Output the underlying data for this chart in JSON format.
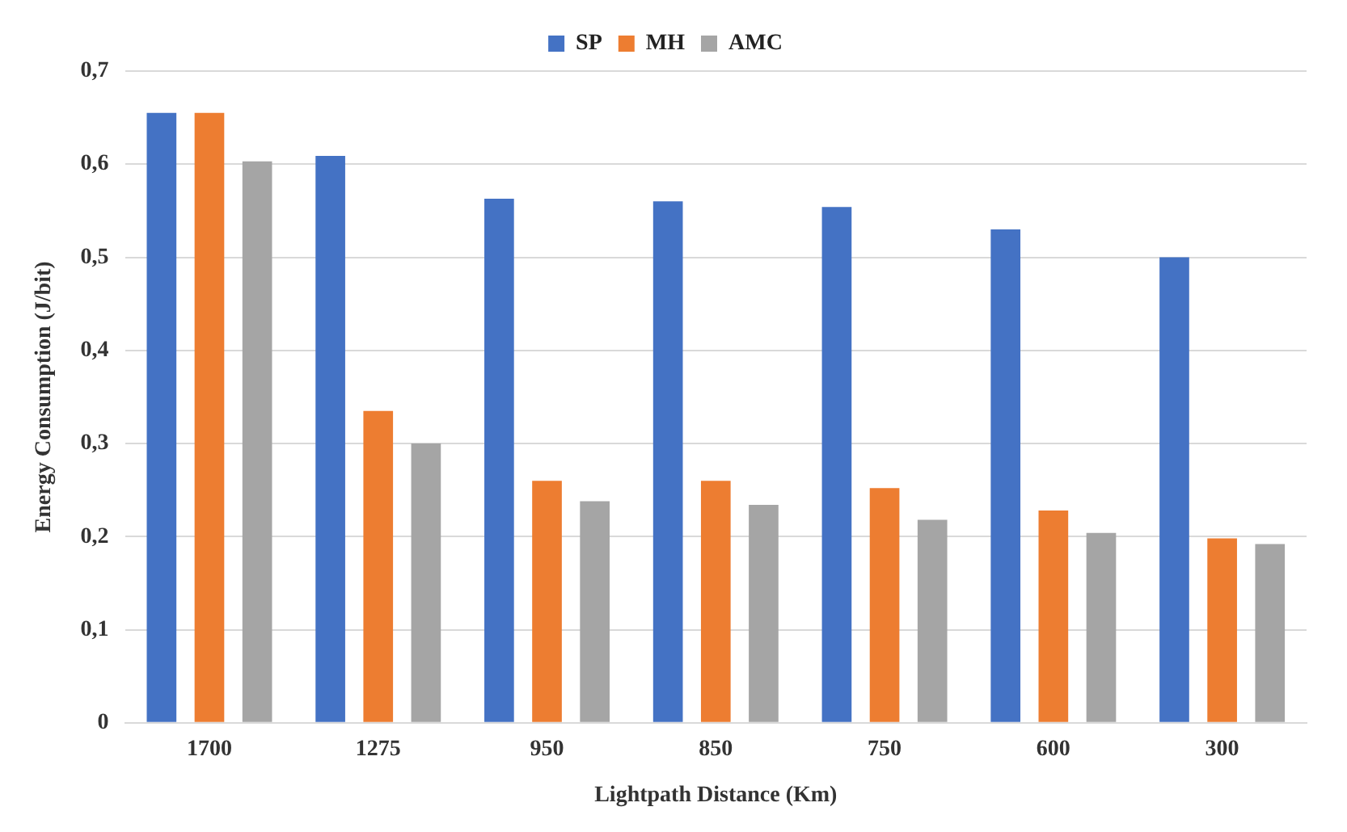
{
  "chart_data": {
    "type": "bar",
    "xlabel": "Lightpath Distance (Km)",
    "ylabel": "Energy Consumption (J/bit)",
    "categories": [
      "1700",
      "1275",
      "950",
      "850",
      "750",
      "600",
      "300"
    ],
    "series": [
      {
        "name": "SP",
        "color": "#4472c4",
        "values": [
          0.655,
          0.609,
          0.563,
          0.56,
          0.554,
          0.53,
          0.5
        ]
      },
      {
        "name": "MH",
        "color": "#ed7d31",
        "values": [
          0.655,
          0.335,
          0.26,
          0.26,
          0.252,
          0.228,
          0.198
        ]
      },
      {
        "name": "AMC",
        "color": "#a5a5a5",
        "values": [
          0.603,
          0.3,
          0.238,
          0.234,
          0.218,
          0.204,
          0.192
        ]
      }
    ],
    "ylim": [
      0,
      0.7
    ],
    "yticks": [
      0,
      {
        "value": 0.1,
        "label": "0,1"
      },
      {
        "value": 0.2,
        "label": "0,2"
      },
      {
        "value": 0.3,
        "label": "0,3"
      },
      {
        "value": 0.4,
        "label": "0,4"
      },
      {
        "value": 0.5,
        "label": "0,5"
      },
      {
        "value": 0.6,
        "label": "0,6"
      },
      {
        "value": 0.7,
        "label": "0,7"
      }
    ],
    "grid": "y",
    "legend": "top"
  }
}
